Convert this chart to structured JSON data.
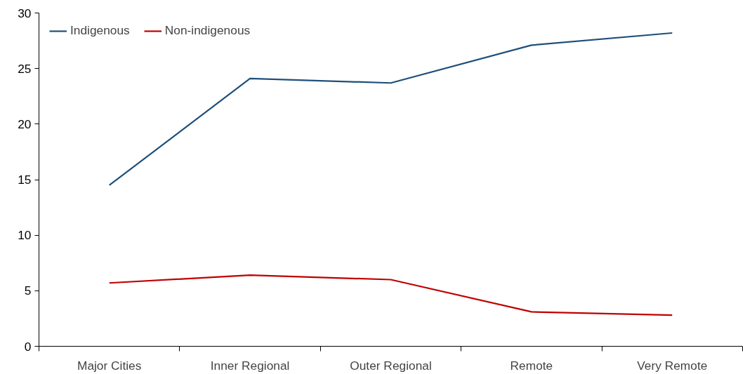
{
  "chart_data": {
    "type": "line",
    "categories": [
      "Major Cities",
      "Inner Regional",
      "Outer Regional",
      "Remote",
      "Very Remote"
    ],
    "series": [
      {
        "name": "Indigenous",
        "color": "#1f4e79",
        "values": [
          14.5,
          24.1,
          23.7,
          27.1,
          28.2
        ]
      },
      {
        "name": "Non-indigenous",
        "color": "#c00000",
        "values": [
          5.7,
          6.4,
          6.0,
          3.1,
          2.8
        ]
      }
    ],
    "ylim": [
      0,
      30
    ],
    "yticks": [
      0,
      5,
      10,
      15,
      20,
      25,
      30
    ],
    "grid": false,
    "legend": "top left",
    "marker": "none",
    "line_style": "solid"
  }
}
